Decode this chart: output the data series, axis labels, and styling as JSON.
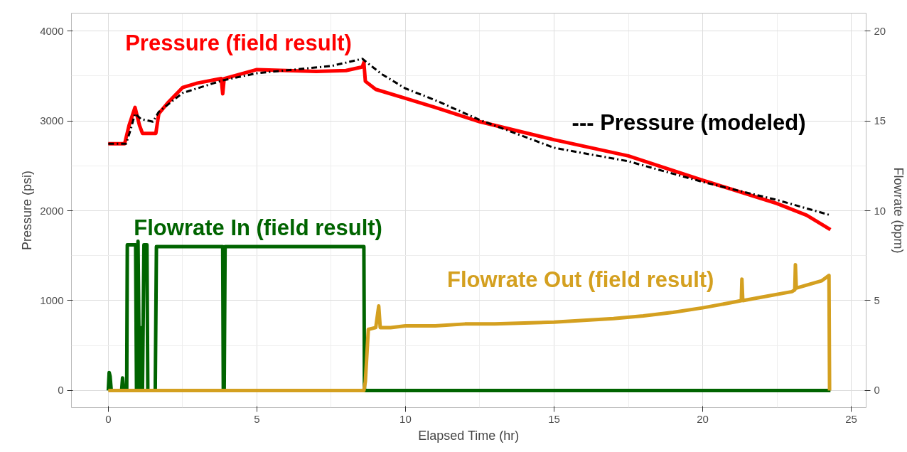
{
  "chart_data": {
    "type": "line",
    "xlabel": "Elapsed Time (hr)",
    "ylabel": "Pressure (psi)",
    "y2label": "Flowrate (bpm)",
    "xlim": [
      -1.24,
      25.5
    ],
    "xticks": [
      0,
      5,
      10,
      15,
      20,
      25
    ],
    "ylim": [
      -190,
      4198
    ],
    "yticks": [
      0,
      1000,
      2000,
      3000,
      4000
    ],
    "y2lim": [
      -0.95,
      20.99
    ],
    "y2ticks": [
      0,
      5,
      10,
      15,
      20
    ],
    "grid": true,
    "legend": false,
    "series": [
      {
        "name": "Pressure (field result)",
        "color": "#ff0000",
        "line_style": "solid",
        "axis": "y",
        "x": [
          0,
          0.55,
          0.7,
          0.9,
          1.05,
          1.15,
          1.6,
          1.7,
          2.0,
          2.5,
          3.0,
          3.8,
          3.85,
          3.9,
          5.0,
          6.0,
          7.0,
          8.0,
          8.55,
          8.6,
          8.65,
          9.0,
          10,
          11,
          12.5,
          15,
          17.5,
          20,
          22.5,
          23.5,
          24.3
        ],
        "values": [
          2745,
          2745,
          2950,
          3150,
          2950,
          2860,
          2860,
          3080,
          3200,
          3370,
          3420,
          3470,
          3300,
          3470,
          3570,
          3560,
          3550,
          3560,
          3600,
          3650,
          3440,
          3350,
          3250,
          3150,
          2990,
          2790,
          2610,
          2340,
          2080,
          1950,
          1790
        ]
      },
      {
        "name": "--- Pressure (modeled)",
        "color": "#000000",
        "line_style": "dashed",
        "axis": "y",
        "x": [
          0,
          0.6,
          0.75,
          0.9,
          1.1,
          1.5,
          1.7,
          2.5,
          3.85,
          5,
          7.5,
          8.55,
          8.7,
          9.2,
          10,
          11,
          12.5,
          15,
          17.5,
          20,
          22.5,
          24.3
        ],
        "values": [
          2745,
          2745,
          2900,
          3080,
          3020,
          2990,
          3100,
          3310,
          3450,
          3530,
          3610,
          3690,
          3650,
          3520,
          3360,
          3230,
          3010,
          2700,
          2550,
          2320,
          2120,
          1950
        ]
      },
      {
        "name": "Flowrate In (field result)",
        "color": "#006400",
        "line_style": "solid",
        "axis": "y2",
        "x": [
          0,
          0.03,
          0.06,
          0.1,
          0.45,
          0.48,
          0.52,
          0.62,
          0.64,
          0.92,
          0.95,
          0.98,
          1.0,
          1.05,
          1.08,
          1.15,
          1.2,
          1.3,
          1.33,
          1.58,
          1.62,
          1.66,
          3.85,
          3.87,
          3.9,
          3.93,
          8.6,
          8.62,
          24.3
        ],
        "values": [
          0,
          1.0,
          0.8,
          0,
          0,
          0.7,
          0,
          0,
          8.1,
          8.1,
          0,
          0,
          8.3,
          0,
          3.5,
          0,
          8.1,
          8.1,
          0,
          0,
          8.0,
          8.0,
          8.0,
          0,
          0,
          8.0,
          8.0,
          0,
          0
        ]
      },
      {
        "name": "Flowrate Out (field result)",
        "color": "#d4a020",
        "line_style": "solid",
        "axis": "y2",
        "x": [
          0,
          8.6,
          8.65,
          8.75,
          9.0,
          9.1,
          9.15,
          9.5,
          10,
          11,
          12,
          13,
          14,
          15,
          16,
          17,
          18,
          19,
          20,
          21,
          21.3,
          21.32,
          21.35,
          22,
          23,
          23.1,
          23.12,
          23.15,
          24,
          24.25,
          24.27
        ],
        "values": [
          0,
          0,
          0.5,
          3.4,
          3.5,
          4.7,
          3.5,
          3.5,
          3.6,
          3.6,
          3.7,
          3.7,
          3.75,
          3.8,
          3.9,
          4.0,
          4.15,
          4.35,
          4.6,
          4.9,
          5.0,
          6.2,
          5.0,
          5.2,
          5.5,
          5.6,
          7.0,
          5.7,
          6.1,
          6.4,
          0
        ]
      }
    ]
  }
}
